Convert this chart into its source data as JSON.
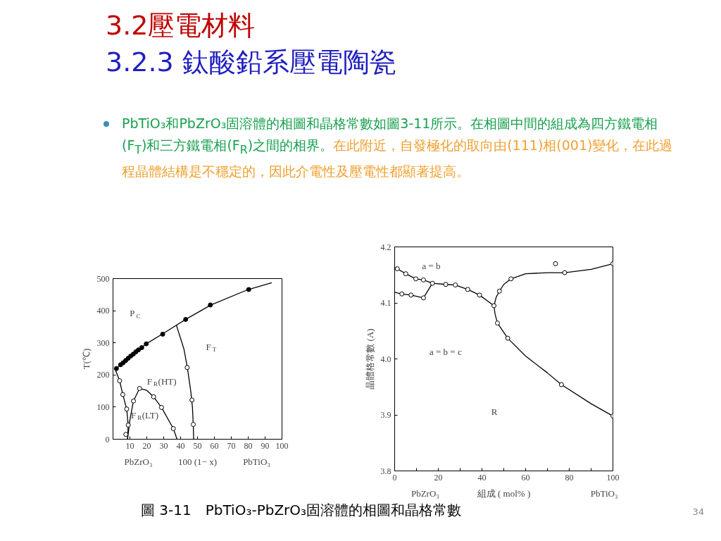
{
  "chart_data": [
    {
      "type": "line",
      "title": "3.2壓電材料",
      "subtitle": "3.2.3 鈦酸鉛系壓電陶瓷",
      "xlabel": "100 (1− x)",
      "ylabel": "T(℃)",
      "xlim": [
        0,
        100
      ],
      "xticks": [
        10,
        20,
        30,
        40,
        50,
        60,
        70,
        80,
        90,
        100
      ],
      "ylim": [
        0,
        500
      ],
      "yticks": [
        0,
        100,
        200,
        300,
        400,
        500
      ],
      "grid": false,
      "series": [
        {
          "marker": "none",
          "color": "#000000",
          "x": [
            2,
            10,
            20,
            30,
            43,
            58,
            80,
            94
          ],
          "values": [
            220,
            258,
            298,
            330,
            373,
            418,
            466,
            487
          ]
        },
        {
          "marker": "none",
          "color": "#000000",
          "x": [
            37.5,
            42,
            44,
            46,
            47,
            47.5,
            47.7
          ],
          "values": [
            355,
            280,
            223,
            150,
            100,
            46,
            0
          ]
        },
        {
          "marker": "none",
          "color": "#000000",
          "x": [
            1.5,
            3.9,
            5.8,
            8.1,
            9,
            8.6
          ],
          "values": [
            215,
            182,
            139,
            94,
            44,
            0
          ]
        },
        {
          "marker": "none",
          "color": "#000000",
          "x": [
            8.6,
            10,
            12.1,
            15.7,
            20,
            24,
            28.7,
            35.7,
            37.9
          ],
          "values": [
            0,
            60,
            119,
            158,
            152,
            132,
            99,
            33,
            0
          ]
        },
        {
          "type": "scatter",
          "marker": "circle",
          "color": "#000000",
          "x": [
            2,
            4.5,
            6,
            7.5,
            9,
            10.5,
            12,
            13.5,
            15,
            17,
            19.7,
            29.4,
            43,
            57.6,
            80.3
          ],
          "values": [
            220,
            232,
            238,
            245,
            252,
            259,
            265,
            272,
            278,
            285,
            297,
            327,
            373,
            418,
            466
          ]
        },
        {
          "type": "scatter",
          "marker": "circle",
          "color": "#ffffff",
          "x": [
            43.9,
            46.7,
            47.5,
            3.9,
            5.8,
            8.1,
            9,
            7.6,
            12.1,
            15.7,
            24,
            28.7,
            35.7
          ],
          "values": [
            223,
            122,
            46,
            182,
            139,
            94,
            44,
            15,
            119,
            158,
            132,
            99,
            33
          ]
        }
      ],
      "annotations": [
        "P$_{C}$",
        "F$_{T}$",
        "F$_{R}$(HT)",
        "F$_{R}$(LT)",
        "PbZrO₃",
        "PbTiO₃",
        "PbTiO₃和PbZrO₃固溶體的相圖和晶格常數如圖3-11所示。在相圖中間的組成為四方鐵電相(F$_{T}$)和三方鐵電相(F$_{R}$)之間的相界。",
        "在此附近，自發極化的取向由(111)相(001)變化，在此過程晶體結構是不穩定的，因此介電性及壓電性都顯著提高。",
        "圖 3-11　PbTiO₃-PbZrO₃固溶體的相圖和晶格常數",
        "34"
      ]
    },
    {
      "type": "line",
      "xlabel": "組成 ( mol% )",
      "ylabel": "晶體格常數 (A)",
      "xlim": [
        0,
        100
      ],
      "xticks": [
        0,
        {
          "value": 10,
          "label": null
        },
        20,
        {
          "value": 30,
          "label": null
        },
        40,
        {
          "value": 50,
          "label": null
        },
        60,
        {
          "value": 70,
          "label": null
        },
        80,
        {
          "value": 90,
          "label": null
        },
        100
      ],
      "ylim": [
        3.8,
        4.2
      ],
      "yticks": [
        {
          "value": 3.8,
          "label": "3.8"
        },
        {
          "value": 3.9,
          "label": "3.9"
        },
        {
          "value": 4.0,
          "label": "4.0"
        },
        {
          "value": 4.1,
          "label": "4.1"
        },
        {
          "value": 4.2,
          "label": "4.2"
        }
      ],
      "grid": false,
      "series": [
        {
          "marker": "none",
          "color": "#000000",
          "x": [
            0,
            1.2,
            5.1,
            9.7,
            13.2,
            17.3,
            23.4,
            27.8,
            33.5,
            38.9,
            45.5
          ],
          "values": [
            4.163,
            4.161,
            4.152,
            4.143,
            4.141,
            4.135,
            4.133,
            4.132,
            4.124,
            4.114,
            4.095
          ]
        },
        {
          "marker": "none",
          "color": "#000000",
          "x": [
            0,
            3.3,
            7.5,
            13.2,
            17.3
          ],
          "values": [
            4.119,
            4.116,
            4.114,
            4.109,
            4.135
          ]
        },
        {
          "marker": "none",
          "color": "#000000",
          "x": [
            45.5,
            46.5,
            48,
            50,
            53.3,
            60,
            70,
            77.9,
            90,
            100
          ],
          "values": [
            4.095,
            4.11,
            4.121,
            4.133,
            4.143,
            4.152,
            4.154,
            4.154,
            4.16,
            4.17
          ]
        },
        {
          "marker": "none",
          "color": "#000000",
          "x": [
            45.5,
            46,
            47.1,
            51.8,
            60,
            70,
            76.4,
            90,
            100
          ],
          "values": [
            4.095,
            4.08,
            4.064,
            4.037,
            4.005,
            3.975,
            3.954,
            3.92,
            3.898
          ]
        },
        {
          "type": "scatter",
          "marker": "circle",
          "color": "#ffffff",
          "x": [
            1.2,
            5.1,
            9.7,
            13.2,
            17.3,
            23.4,
            27.8,
            33.5,
            38.9,
            45.5,
            3.3,
            7.5,
            13.2,
            48,
            53.3,
            77.9,
            100,
            73.7,
            47.1,
            51.8,
            76.4,
            100
          ],
          "values": [
            4.161,
            4.152,
            4.143,
            4.141,
            4.135,
            4.133,
            4.132,
            4.124,
            4.114,
            4.095,
            4.116,
            4.114,
            4.109,
            4.121,
            4.143,
            4.154,
            4.17,
            4.17,
            4.064,
            4.037,
            3.954,
            3.898
          ]
        }
      ],
      "annotations": [
        "a = b",
        "a = b = c",
        "R",
        "PbZrO₃",
        "PbTiO₃"
      ]
    }
  ]
}
